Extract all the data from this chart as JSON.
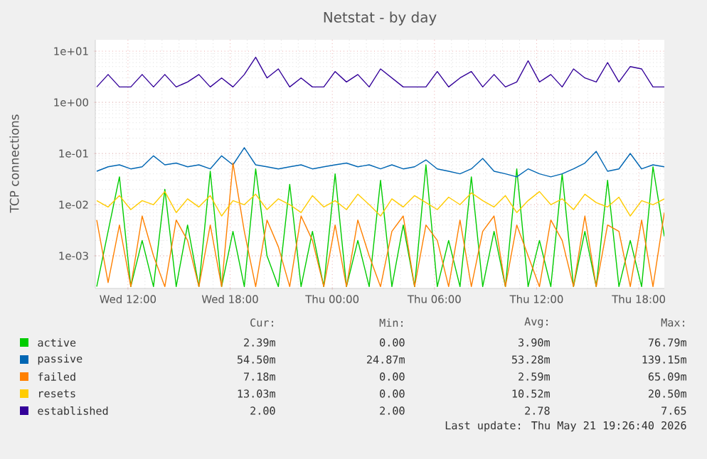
{
  "chart_data": {
    "type": "line",
    "title": "Netstat - by day",
    "ylabel": "TCP connections",
    "log": "y",
    "grid": true,
    "legend": "bottom",
    "xlim": [
      "2026-05-20T10:05",
      "2026-05-21T19:30"
    ],
    "ylim": [
      0.00023,
      16.7
    ],
    "xticks": [
      {
        "value": "2026-05-20T12:00",
        "label": "Wed 12:00"
      },
      {
        "value": "2026-05-20T18:00",
        "label": "Wed 18:00"
      },
      {
        "value": "2026-05-21T00:00",
        "label": "Thu 00:00"
      },
      {
        "value": "2026-05-21T06:00",
        "label": "Thu 06:00"
      },
      {
        "value": "2026-05-21T12:00",
        "label": "Thu 12:00"
      },
      {
        "value": "2026-05-21T18:00",
        "label": "Thu 18:00"
      }
    ],
    "yticks": [
      {
        "value": 0.001,
        "label": "1e-03"
      },
      {
        "value": 0.01,
        "label": "1e-02"
      },
      {
        "value": 0.1,
        "label": "1e-01"
      },
      {
        "value": 1,
        "label": "1e+00"
      },
      {
        "value": 10,
        "label": "1e+01"
      }
    ],
    "x": [
      "2026-05-20T10:10",
      "2026-05-20T10:50",
      "2026-05-20T11:30",
      "2026-05-20T12:10",
      "2026-05-20T12:50",
      "2026-05-20T13:30",
      "2026-05-20T14:10",
      "2026-05-20T14:50",
      "2026-05-20T15:30",
      "2026-05-20T16:10",
      "2026-05-20T16:50",
      "2026-05-20T17:30",
      "2026-05-20T18:10",
      "2026-05-20T18:50",
      "2026-05-20T19:30",
      "2026-05-20T20:10",
      "2026-05-20T20:50",
      "2026-05-20T21:30",
      "2026-05-20T22:10",
      "2026-05-20T22:50",
      "2026-05-20T23:30",
      "2026-05-21T00:10",
      "2026-05-21T00:50",
      "2026-05-21T01:30",
      "2026-05-21T02:10",
      "2026-05-21T02:50",
      "2026-05-21T03:30",
      "2026-05-21T04:10",
      "2026-05-21T04:50",
      "2026-05-21T05:30",
      "2026-05-21T06:10",
      "2026-05-21T06:50",
      "2026-05-21T07:30",
      "2026-05-21T08:10",
      "2026-05-21T08:50",
      "2026-05-21T09:30",
      "2026-05-21T10:10",
      "2026-05-21T10:50",
      "2026-05-21T11:30",
      "2026-05-21T12:10",
      "2026-05-21T12:50",
      "2026-05-21T13:30",
      "2026-05-21T14:10",
      "2026-05-21T14:50",
      "2026-05-21T15:30",
      "2026-05-21T16:10",
      "2026-05-21T16:50",
      "2026-05-21T17:30",
      "2026-05-21T18:10",
      "2026-05-21T18:50",
      "2026-05-21T19:30"
    ],
    "series": [
      {
        "name": "active",
        "color": "#00cc00",
        "values": [
          0.00025,
          0.003,
          0.035,
          0.00025,
          0.002,
          0.00025,
          0.02,
          0.00025,
          0.004,
          0.00025,
          0.045,
          0.00025,
          0.003,
          0.00025,
          0.05,
          0.001,
          0.00025,
          0.025,
          0.00025,
          0.003,
          0.00025,
          0.04,
          0.00025,
          0.002,
          0.00025,
          0.03,
          0.00025,
          0.004,
          0.00025,
          0.06,
          0.00025,
          0.002,
          0.00025,
          0.035,
          0.00025,
          0.003,
          0.00025,
          0.05,
          0.00025,
          0.002,
          0.00025,
          0.04,
          0.00025,
          0.003,
          0.00025,
          0.03,
          0.00025,
          0.002,
          0.00025,
          0.055,
          0.0024
        ]
      },
      {
        "name": "passive",
        "color": "#0066b3",
        "values": [
          0.045,
          0.055,
          0.06,
          0.05,
          0.055,
          0.09,
          0.06,
          0.065,
          0.055,
          0.06,
          0.05,
          0.09,
          0.06,
          0.13,
          0.06,
          0.055,
          0.05,
          0.055,
          0.06,
          0.05,
          0.055,
          0.06,
          0.065,
          0.055,
          0.06,
          0.05,
          0.06,
          0.05,
          0.055,
          0.075,
          0.05,
          0.045,
          0.04,
          0.05,
          0.08,
          0.045,
          0.04,
          0.035,
          0.05,
          0.04,
          0.035,
          0.04,
          0.05,
          0.065,
          0.11,
          0.045,
          0.05,
          0.1,
          0.05,
          0.06,
          0.055
        ]
      },
      {
        "name": "failed",
        "color": "#ff8000",
        "values": [
          0.005,
          0.0003,
          0.004,
          0.00025,
          0.006,
          0.001,
          0.00025,
          0.005,
          0.002,
          0.00025,
          0.004,
          0.00025,
          0.065,
          0.003,
          0.00025,
          0.005,
          0.0015,
          0.00025,
          0.006,
          0.002,
          0.00025,
          0.004,
          0.00025,
          0.005,
          0.001,
          0.00025,
          0.003,
          0.006,
          0.00025,
          0.004,
          0.002,
          0.00025,
          0.005,
          0.00025,
          0.003,
          0.006,
          0.00025,
          0.004,
          0.001,
          0.00025,
          0.005,
          0.002,
          0.00025,
          0.006,
          0.00025,
          0.004,
          0.003,
          0.00025,
          0.005,
          0.00025,
          0.007
        ]
      },
      {
        "name": "resets",
        "color": "#ffcc00",
        "values": [
          0.012,
          0.009,
          0.015,
          0.008,
          0.012,
          0.01,
          0.018,
          0.007,
          0.013,
          0.009,
          0.015,
          0.006,
          0.012,
          0.01,
          0.016,
          0.008,
          0.013,
          0.01,
          0.007,
          0.015,
          0.009,
          0.012,
          0.008,
          0.016,
          0.01,
          0.006,
          0.013,
          0.009,
          0.015,
          0.011,
          0.008,
          0.014,
          0.01,
          0.017,
          0.012,
          0.009,
          0.015,
          0.007,
          0.012,
          0.018,
          0.01,
          0.013,
          0.008,
          0.016,
          0.011,
          0.009,
          0.014,
          0.006,
          0.012,
          0.01,
          0.013
        ]
      },
      {
        "name": "established",
        "color": "#330099",
        "values": [
          2,
          3.5,
          2,
          2,
          3.5,
          2,
          3.5,
          2,
          2.5,
          3.5,
          2,
          3,
          2,
          3.5,
          7.6,
          3,
          4.5,
          2,
          3,
          2,
          2,
          4,
          2.5,
          3.5,
          2,
          4.5,
          3,
          2,
          2,
          2,
          4,
          2,
          3,
          4,
          2,
          3.5,
          2,
          2.5,
          6.5,
          2.5,
          3.5,
          2,
          4.5,
          3,
          2.5,
          6,
          2.5,
          5,
          4.5,
          2,
          2
        ]
      }
    ],
    "annotations": [
      "Cur:",
      "Min:",
      "Avg:",
      "Max:",
      "2.39m",
      "0.00",
      "3.90m",
      "76.79m",
      "54.50m",
      "24.87m",
      "53.28m",
      "139.15m",
      "7.18m",
      "0.00",
      "2.59m",
      "65.09m",
      "13.03m",
      "0.00",
      "10.52m",
      "20.50m",
      "2.00",
      "2.00",
      "2.78",
      "7.65",
      "Last update: Thu May 21 19:26:40 2026"
    ]
  }
}
